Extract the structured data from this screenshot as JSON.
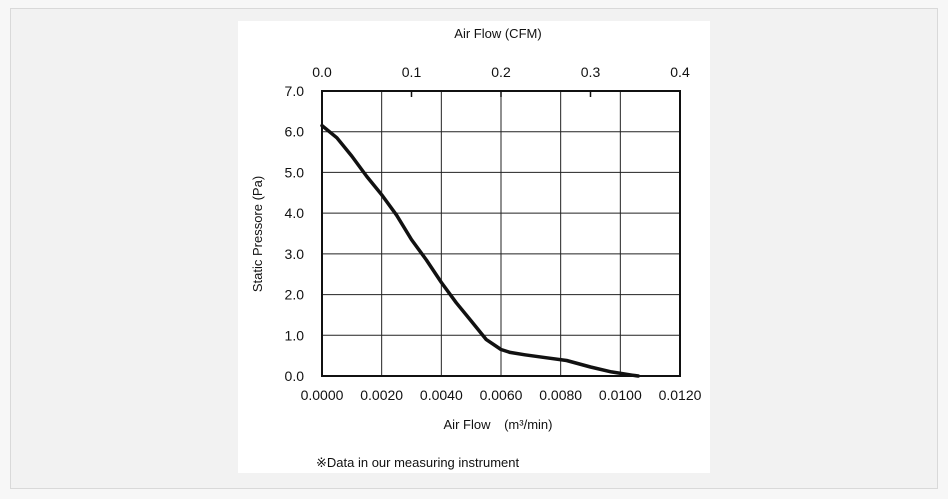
{
  "chart_data": {
    "type": "line",
    "x_bottom": {
      "label_prefix": "Air Flow",
      "label_unit": "(m³/min)",
      "range": [
        0,
        0.012
      ],
      "ticks": [
        "0.0000",
        "0.0020",
        "0.0040",
        "0.0060",
        "0.0080",
        "0.0100",
        "0.0120"
      ]
    },
    "x_top": {
      "label": "Air Flow (CFM)",
      "range": [
        0,
        0.4
      ],
      "ticks": [
        "0.0",
        "0.1",
        "0.2",
        "0.3",
        "0.4"
      ]
    },
    "y": {
      "label": "Static Pressore (Pa)",
      "range": [
        0,
        7
      ],
      "ticks": [
        "0.0",
        "1.0",
        "2.0",
        "3.0",
        "4.0",
        "5.0",
        "6.0",
        "7.0"
      ]
    },
    "grid": true,
    "series": [
      {
        "x": [
          0,
          0.0005,
          0.001,
          0.0015,
          0.002,
          0.0025,
          0.003,
          0.0035,
          0.004,
          0.0045,
          0.005,
          0.0055,
          0.006,
          0.0063,
          0.0068,
          0.0075,
          0.0082,
          0.009,
          0.0097,
          0.0104,
          0.0106
        ],
        "y": [
          6.15,
          5.85,
          5.4,
          4.9,
          4.45,
          3.95,
          3.35,
          2.85,
          2.3,
          1.8,
          1.35,
          0.9,
          0.65,
          0.58,
          0.52,
          0.45,
          0.38,
          0.22,
          0.1,
          0.02,
          0.0
        ]
      }
    ],
    "note": "※Data in our measuring instrument"
  }
}
